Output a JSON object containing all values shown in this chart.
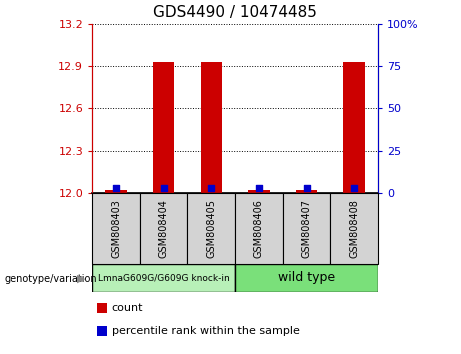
{
  "title": "GDS4490 / 10474485",
  "samples": [
    "GSM808403",
    "GSM808404",
    "GSM808405",
    "GSM808406",
    "GSM808407",
    "GSM808408"
  ],
  "red_values": [
    12.02,
    12.93,
    12.93,
    12.02,
    12.02,
    12.93
  ],
  "blue_percentile": [
    3,
    3,
    3,
    3,
    3,
    3
  ],
  "ylim_left": [
    12.0,
    13.2
  ],
  "ylim_right": [
    0,
    100
  ],
  "left_ticks": [
    12.0,
    12.3,
    12.6,
    12.9,
    13.2
  ],
  "right_ticks": [
    0,
    25,
    50,
    75,
    100
  ],
  "right_tick_labels": [
    "0",
    "25",
    "50",
    "75",
    "100%"
  ],
  "group1_label": "LmnaG609G/G609G knock-in",
  "group2_label": "wild type",
  "bar_width": 0.45,
  "red_color": "#cc0000",
  "blue_color": "#0000cc",
  "group1_bg": "#b8f0b8",
  "group2_bg": "#7ae07a",
  "sample_bg": "#d3d3d3",
  "genotype_label": "genotype/variation",
  "legend_count": "count",
  "legend_percentile": "percentile rank within the sample",
  "title_fontsize": 11,
  "tick_fontsize": 8,
  "sample_fontsize": 7,
  "legend_fontsize": 8
}
